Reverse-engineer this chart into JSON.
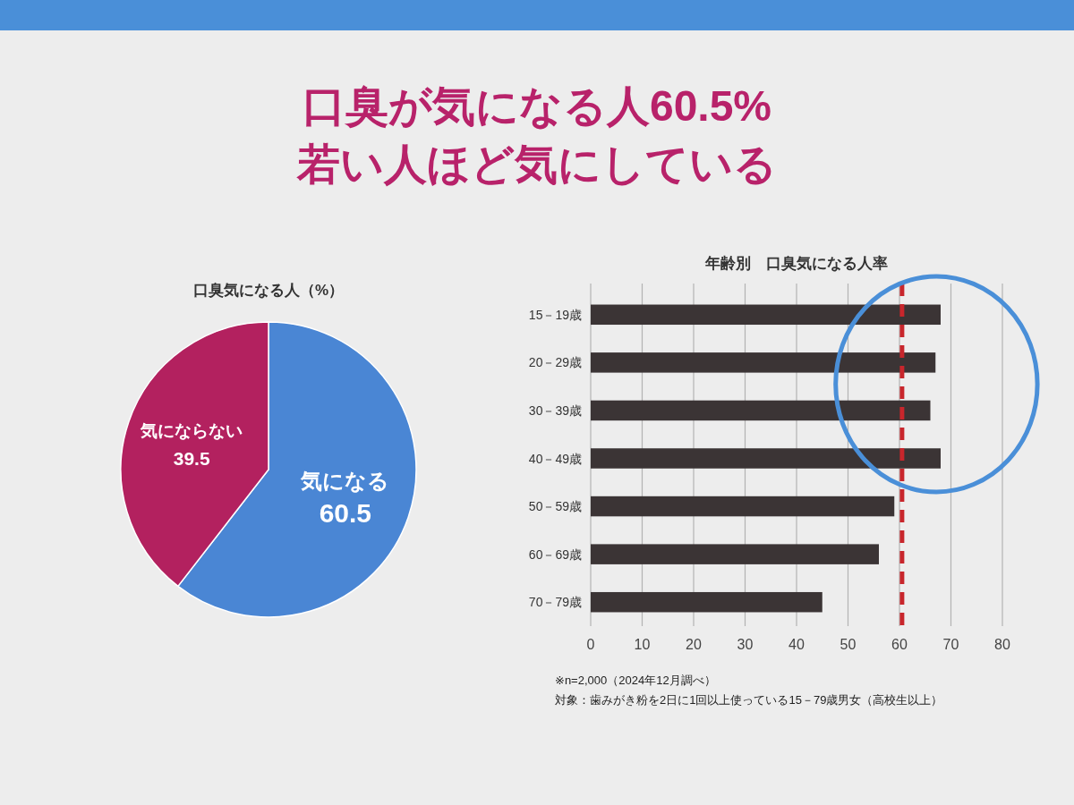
{
  "chart_data": [
    {
      "type": "other",
      "title": "口臭が気になる人60.5%",
      "subtitle": "若い人ほど気にしている"
    },
    {
      "type": "pie",
      "title": "口臭気になる人（%）",
      "categories": [
        "気になる",
        "気にならない"
      ],
      "values": [
        60.5,
        39.5
      ],
      "colors": [
        "#4a86d4",
        "#b3215f"
      ],
      "data_labels": true
    },
    {
      "type": "bar",
      "orientation": "horizontal",
      "title": "年齢別　口臭気になる人率",
      "categories": [
        "15－19歳",
        "20－29歳",
        "30－39歳",
        "40－49歳",
        "50－59歳",
        "60－69歳",
        "70－79歳"
      ],
      "values": [
        68,
        67,
        66,
        68,
        59,
        56,
        45
      ],
      "color": "#3b3435",
      "xlim": [
        0,
        80
      ],
      "xticks": [
        0,
        10,
        20,
        30,
        40,
        50,
        60,
        70,
        80
      ],
      "grid": "x",
      "ref_lines": [
        {
          "axis": "x",
          "value": 60.5,
          "color": "#c8262c",
          "line_style": "dashed"
        }
      ],
      "annotations": [
        "※n=2,000（2024年12月調べ）",
        "対象：歯みがき粉を2日に1回以上使っている15－79歳男女（高校生以上）"
      ]
    }
  ]
}
